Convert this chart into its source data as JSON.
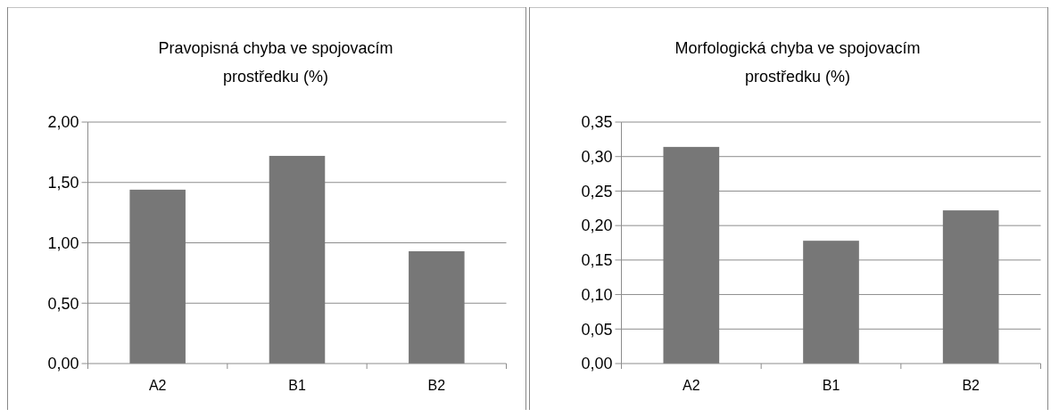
{
  "chart_data": [
    {
      "type": "bar",
      "title": "Pravopisná chyba ve spojovacím prostředku (%)",
      "categories": [
        "A2",
        "B1",
        "B2"
      ],
      "values": [
        1.44,
        1.72,
        0.93
      ],
      "color": "#777777",
      "ylim": [
        0,
        2
      ],
      "yticks": [
        {
          "value": 0,
          "label": "0,00"
        },
        {
          "value": 0.5,
          "label": "0,50"
        },
        {
          "value": 1,
          "label": "1,00"
        },
        {
          "value": 1.5,
          "label": "1,50"
        },
        {
          "value": 2,
          "label": "2,00"
        }
      ],
      "grid": "y"
    },
    {
      "type": "bar",
      "title": "Morfologická chyba ve spojovacím prostředku (%)",
      "categories": [
        "A2",
        "B1",
        "B2"
      ],
      "values": [
        0.314,
        0.178,
        0.222
      ],
      "color": "#777777",
      "ylim": [
        0,
        0.35
      ],
      "yticks": [
        {
          "value": 0,
          "label": "0,00"
        },
        {
          "value": 0.05,
          "label": "0,05"
        },
        {
          "value": 0.1,
          "label": "0,10"
        },
        {
          "value": 0.15,
          "label": "0,15"
        },
        {
          "value": 0.2,
          "label": "0,20"
        },
        {
          "value": 0.25,
          "label": "0,25"
        },
        {
          "value": 0.3,
          "label": "0,30"
        },
        {
          "value": 0.35,
          "label": "0,35"
        }
      ],
      "grid": "y"
    }
  ]
}
